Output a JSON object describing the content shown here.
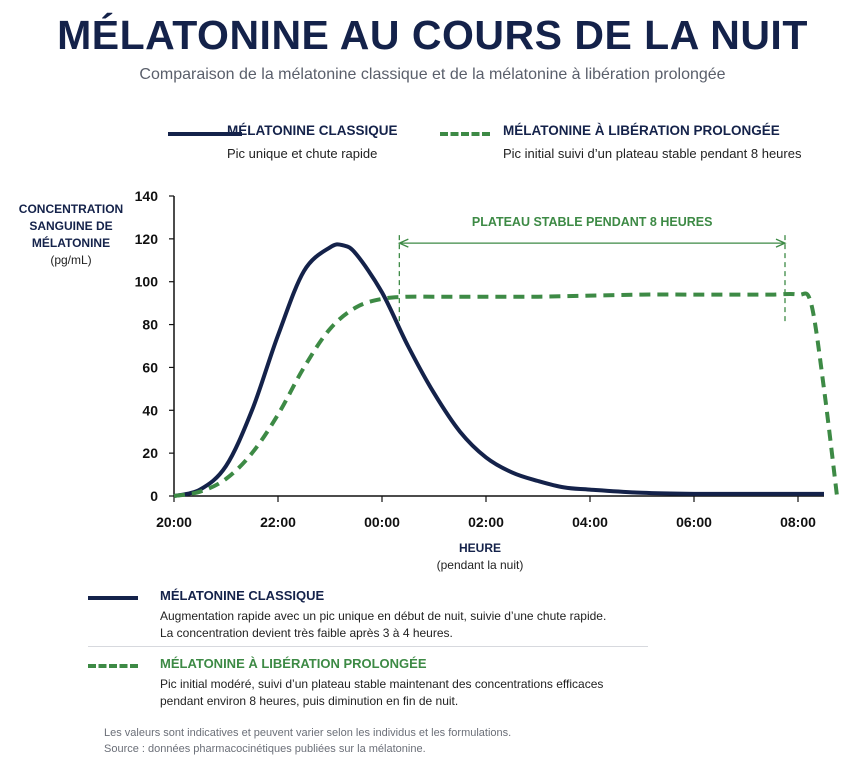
{
  "title": "MÉLATONINE AU COURS DE LA NUIT",
  "subtitle": "Comparaison de la mélatonine classique et de la mélatonine à libération prolongée",
  "legend": {
    "classic_name": "MÉLATONINE CLASSIQUE",
    "classic_desc": "Pic unique et chute rapide",
    "prolonged_name": "MÉLATONINE À LIBÉRATION PROLONGÉE",
    "prolonged_desc": "Pic initial suivi d’un plateau stable pendant 8 heures"
  },
  "colors": {
    "classic": "#14224a",
    "prolonged": "#3d8a45",
    "axis": "#111111"
  },
  "chart_data": {
    "type": "line",
    "title": "MÉLATONINE AU COURS DE LA NUIT",
    "ylabel_lines": [
      "CONCENTRATION",
      "SANGUINE DE",
      "MÉLATONINE"
    ],
    "ylabel_unit": "(pg/mL)",
    "xlabel": "HEURE",
    "xlabel_unit": "(pendant la nuit)",
    "ylim": [
      0,
      140
    ],
    "yticks": [
      0,
      20,
      40,
      60,
      80,
      100,
      120,
      140
    ],
    "xlim_hours": [
      20,
      32.5
    ],
    "xticks": [
      "20:00",
      "22:00",
      "00:00",
      "02:00",
      "04:00",
      "06:00",
      "08:00"
    ],
    "grid": false,
    "series": [
      {
        "name": "MÉLATONINE CLASSIQUE",
        "style": "solid",
        "x": [
          "20:00",
          "20:30",
          "21:00",
          "21:30",
          "22:00",
          "22:30",
          "23:00",
          "23:15",
          "23:30",
          "00:00",
          "00:30",
          "01:00",
          "01:30",
          "02:00",
          "02:30",
          "03:00",
          "03:30",
          "04:00",
          "05:00",
          "06:00",
          "07:00",
          "08:00",
          "08:30"
        ],
        "y": [
          0,
          3,
          14,
          40,
          75,
          105,
          116,
          117,
          113,
          95,
          70,
          48,
          30,
          18,
          11,
          7,
          4,
          3,
          1.5,
          1,
          1,
          1,
          1
        ]
      },
      {
        "name": "MÉLATONINE À LIBÉRATION PROLONGÉE",
        "style": "dashed",
        "x": [
          "20:00",
          "20:30",
          "21:00",
          "21:30",
          "22:00",
          "22:30",
          "23:00",
          "23:30",
          "00:00",
          "00:30",
          "01:00",
          "02:00",
          "03:00",
          "04:00",
          "05:00",
          "06:00",
          "07:00",
          "07:30",
          "08:00",
          "08:15",
          "08:30",
          "08:45"
        ],
        "y": [
          0,
          2,
          8,
          20,
          38,
          60,
          78,
          88,
          92,
          93,
          93,
          93,
          93,
          93.5,
          94,
          94,
          94,
          94,
          94,
          90,
          50,
          0
        ]
      }
    ],
    "annotations": [
      {
        "text": "PLATEAU STABLE PENDANT 8 HEURES",
        "x_start": "00:20",
        "x_end": "07:45"
      }
    ]
  },
  "bottom_legend": {
    "classic_name": "MÉLATONINE CLASSIQUE",
    "classic_line1": "Augmentation rapide avec un pic unique en début de nuit, suivie d’une chute rapide.",
    "classic_line2": "La concentration devient très faible après 3 à 4 heures.",
    "prolonged_name": "MÉLATONINE À LIBÉRATION PROLONGÉE",
    "prolonged_line1": "Pic initial modéré, suivi d’un plateau stable maintenant des concentrations efficaces",
    "prolonged_line2": "pendant environ 8 heures, puis diminution en fin de nuit."
  },
  "notes": {
    "disclaimer": "Les valeurs sont indicatives et peuvent varier selon les individus et les formulations.",
    "source": "Source : données pharmacocinétiques publiées sur la mélatonine."
  }
}
